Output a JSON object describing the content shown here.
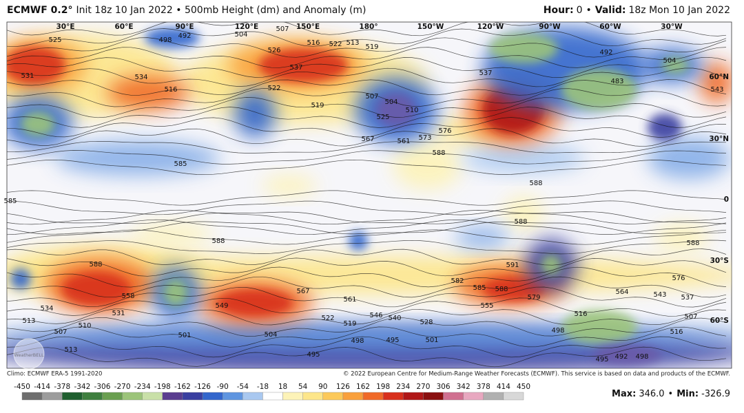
{
  "header": {
    "model": "ECMWF 0.2°",
    "title": "Init 18z 10 Jan 2022 • 500mb Height (dm) and Anomaly (m)",
    "hour_label": "Hour:",
    "hour_value": "0",
    "separator": "•",
    "valid_label": "Valid:",
    "valid_value": "18z Mon 10 Jan 2022"
  },
  "map": {
    "lon_labels": [
      "30°E",
      "60°E",
      "90°E",
      "120°E",
      "150°E",
      "180°",
      "150°W",
      "120°W",
      "90°W",
      "60°W",
      "30°W"
    ],
    "lat_labels": [
      "60°N",
      "30°N",
      "0",
      "30°S",
      "60°S"
    ],
    "contour_labels": [
      "525",
      "531",
      "534",
      "516",
      "498",
      "492",
      "504",
      "507",
      "526",
      "537",
      "516",
      "522",
      "513",
      "519",
      "522",
      "519",
      "507",
      "504",
      "510",
      "525",
      "561",
      "567",
      "573",
      "576",
      "537",
      "492",
      "504",
      "483",
      "543",
      "585",
      "588",
      "588",
      "588",
      "588",
      "585",
      "588",
      "591",
      "582",
      "585",
      "588",
      "579",
      "555",
      "564",
      "543",
      "537",
      "576",
      "588",
      "558",
      "534",
      "531",
      "549",
      "567",
      "561",
      "546",
      "540",
      "528",
      "522",
      "519",
      "513",
      "510",
      "507",
      "501",
      "504",
      "498",
      "495",
      "501",
      "516",
      "498",
      "507",
      "516",
      "513",
      "495",
      "495",
      "492",
      "498"
    ],
    "watermark": "WeatherBELL"
  },
  "footer": {
    "climo": "Climo: ECMWF ERA-5 1991-2020",
    "copyright": "© 2022 European Centre for Medium-Range Weather Forecasts (ECMWF). This service is based on data and products of the ECMWF.",
    "max_label": "Max:",
    "max_value": "346.0",
    "separator": "•",
    "min_label": "Min:",
    "min_value": "-326.9"
  },
  "colorbar": {
    "ticks": [
      -450,
      -414,
      -378,
      -342,
      -306,
      -270,
      -234,
      -198,
      -162,
      -126,
      -90,
      -54,
      -18,
      18,
      54,
      90,
      126,
      162,
      198,
      234,
      270,
      306,
      342,
      378,
      414,
      450
    ],
    "colors": [
      "#6e6e6e",
      "#9c9c9c",
      "#1f5f2f",
      "#3f7f3f",
      "#6a9f50",
      "#9cc47a",
      "#c9e0a8",
      "#5a3d8f",
      "#3a3fa0",
      "#3366cc",
      "#5f95e0",
      "#a9c8f0",
      "#ffffff",
      "#fdf3b8",
      "#fde68a",
      "#fcc95a",
      "#f9a03c",
      "#f06a28",
      "#d8301c",
      "#b01818",
      "#8a1010",
      "#d07090",
      "#e8a8c0",
      "#b0b0b0",
      "#d8d8d8"
    ]
  }
}
